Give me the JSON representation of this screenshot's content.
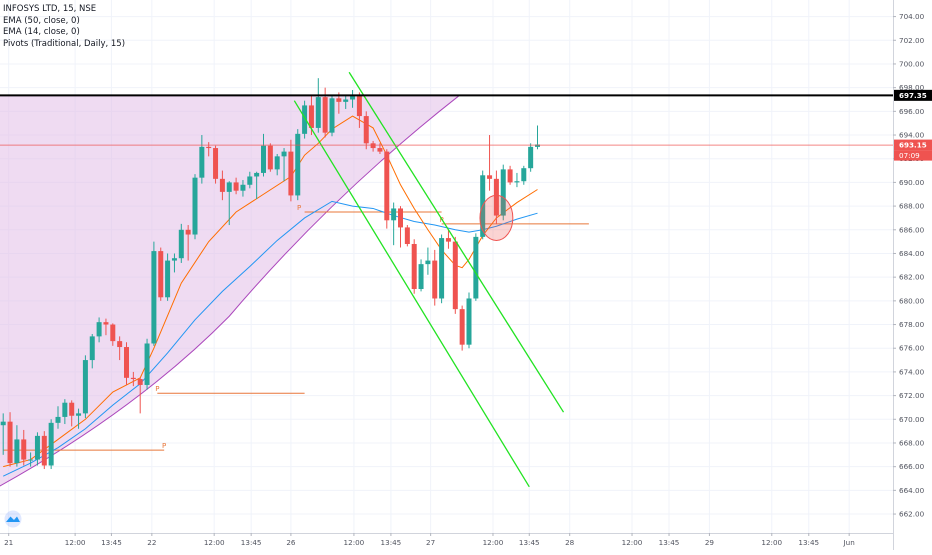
{
  "chart_data": {
    "type": "candlestick",
    "legend": [
      "INFOSYS LTD, 15, NSE",
      "EMA (50, close, 0)",
      "EMA (14, close, 0)",
      "Pivots (Traditional, Daily, 15)"
    ],
    "ylim": [
      660.4,
      705.4
    ],
    "y_ticks": [
      662.0,
      664.0,
      666.0,
      668.0,
      670.0,
      672.0,
      674.0,
      676.0,
      678.0,
      680.0,
      682.0,
      684.0,
      686.0,
      688.0,
      690.0,
      692.0,
      694.0,
      696.0,
      698.0,
      700.0,
      702.0,
      704.0
    ],
    "y_tick_labels": [
      "662.00",
      "664.00",
      "666.00",
      "668.00",
      "670.00",
      "672.00",
      "674.00",
      "676.00",
      "678.00",
      "680.00",
      "682.00",
      "684.00",
      "686.00",
      "688.00",
      "690.00",
      "692.00",
      "694.00",
      "696.00",
      "698.00",
      "700.00",
      "702.00",
      "704.00"
    ],
    "x_domain": [
      0,
      125
    ],
    "x_ticks": [
      {
        "x": 0.8,
        "label": "21"
      },
      {
        "x": 10.5,
        "label": "12:00"
      },
      {
        "x": 15.8,
        "label": "13:45"
      },
      {
        "x": 21.7,
        "label": "22"
      },
      {
        "x": 30.8,
        "label": "12:00"
      },
      {
        "x": 36.2,
        "label": "13:45"
      },
      {
        "x": 42.0,
        "label": "26"
      },
      {
        "x": 51.2,
        "label": "12:00"
      },
      {
        "x": 56.6,
        "label": "13:45"
      },
      {
        "x": 62.4,
        "label": "27"
      },
      {
        "x": 71.5,
        "label": "12:00"
      },
      {
        "x": 76.8,
        "label": "13:45"
      },
      {
        "x": 82.7,
        "label": "28"
      },
      {
        "x": 91.8,
        "label": "12:00"
      },
      {
        "x": 97.2,
        "label": "13:45"
      },
      {
        "x": 103.1,
        "label": "29"
      },
      {
        "x": 112.2,
        "label": "12:00"
      },
      {
        "x": 117.6,
        "label": "13:45"
      },
      {
        "x": 123.5,
        "label": "Jun"
      }
    ],
    "candles": [
      {
        "o": 669.5,
        "h": 670.5,
        "l": 667.0,
        "c": 669.8
      },
      {
        "o": 669.8,
        "h": 670.6,
        "l": 666.0,
        "c": 666.3
      },
      {
        "o": 666.3,
        "h": 669.5,
        "l": 666.0,
        "c": 668.3
      },
      {
        "o": 668.3,
        "h": 669.1,
        "l": 666.1,
        "c": 666.6
      },
      {
        "o": 666.6,
        "h": 667.2,
        "l": 666.0,
        "c": 666.6
      },
      {
        "o": 666.6,
        "h": 668.9,
        "l": 666.1,
        "c": 668.6
      },
      {
        "o": 668.6,
        "h": 669.0,
        "l": 665.8,
        "c": 666.1
      },
      {
        "o": 666.1,
        "h": 670.0,
        "l": 665.8,
        "c": 669.7
      },
      {
        "o": 669.7,
        "h": 671.1,
        "l": 669.2,
        "c": 670.2
      },
      {
        "o": 670.2,
        "h": 671.7,
        "l": 669.6,
        "c": 671.4
      },
      {
        "o": 671.4,
        "h": 671.6,
        "l": 669.4,
        "c": 670.3
      },
      {
        "o": 670.3,
        "h": 670.9,
        "l": 669.2,
        "c": 670.5
      },
      {
        "o": 670.5,
        "h": 675.4,
        "l": 670.1,
        "c": 675.0
      },
      {
        "o": 675.0,
        "h": 677.2,
        "l": 674.3,
        "c": 677.0
      },
      {
        "o": 677.0,
        "h": 678.6,
        "l": 676.5,
        "c": 678.2
      },
      {
        "o": 678.2,
        "h": 678.5,
        "l": 677.1,
        "c": 678.0
      },
      {
        "o": 678.0,
        "h": 678.1,
        "l": 676.2,
        "c": 676.6
      },
      {
        "o": 676.6,
        "h": 677.0,
        "l": 675.0,
        "c": 676.1
      },
      {
        "o": 676.1,
        "h": 676.5,
        "l": 672.9,
        "c": 673.5
      },
      {
        "o": 673.5,
        "h": 674.0,
        "l": 672.8,
        "c": 673.4
      },
      {
        "o": 673.4,
        "h": 673.5,
        "l": 670.5,
        "c": 672.9
      },
      {
        "o": 672.9,
        "h": 676.8,
        "l": 672.5,
        "c": 676.4
      },
      {
        "o": 676.4,
        "h": 685.0,
        "l": 676.2,
        "c": 684.2
      },
      {
        "o": 684.2,
        "h": 684.5,
        "l": 680.0,
        "c": 680.3
      },
      {
        "o": 680.3,
        "h": 684.0,
        "l": 680.0,
        "c": 683.4
      },
      {
        "o": 683.4,
        "h": 684.0,
        "l": 682.4,
        "c": 683.6
      },
      {
        "o": 683.6,
        "h": 686.5,
        "l": 683.2,
        "c": 686.0
      },
      {
        "o": 686.0,
        "h": 686.4,
        "l": 683.4,
        "c": 685.6
      },
      {
        "o": 685.6,
        "h": 690.7,
        "l": 685.2,
        "c": 690.4
      },
      {
        "o": 690.4,
        "h": 694.0,
        "l": 689.9,
        "c": 693.0
      },
      {
        "o": 693.0,
        "h": 693.4,
        "l": 692.2,
        "c": 692.9
      },
      {
        "o": 692.9,
        "h": 693.1,
        "l": 689.9,
        "c": 690.3
      },
      {
        "o": 690.3,
        "h": 691.0,
        "l": 688.5,
        "c": 689.2
      },
      {
        "o": 689.2,
        "h": 690.1,
        "l": 686.4,
        "c": 690.0
      },
      {
        "o": 690.0,
        "h": 690.4,
        "l": 689.0,
        "c": 689.3
      },
      {
        "o": 689.3,
        "h": 690.2,
        "l": 688.8,
        "c": 689.8
      },
      {
        "o": 689.8,
        "h": 690.9,
        "l": 689.5,
        "c": 690.5
      },
      {
        "o": 690.5,
        "h": 690.9,
        "l": 688.6,
        "c": 690.8
      },
      {
        "o": 690.8,
        "h": 694.1,
        "l": 690.5,
        "c": 693.1
      },
      {
        "o": 693.1,
        "h": 693.3,
        "l": 690.9,
        "c": 691.1
      },
      {
        "o": 691.1,
        "h": 692.4,
        "l": 690.6,
        "c": 692.2
      },
      {
        "o": 692.2,
        "h": 692.9,
        "l": 690.1,
        "c": 692.6
      },
      {
        "o": 692.6,
        "h": 693.6,
        "l": 688.4,
        "c": 688.9
      },
      {
        "o": 688.9,
        "h": 694.5,
        "l": 688.5,
        "c": 694.1
      },
      {
        "o": 694.1,
        "h": 696.9,
        "l": 693.7,
        "c": 696.5
      },
      {
        "o": 696.5,
        "h": 697.3,
        "l": 694.0,
        "c": 694.6
      },
      {
        "o": 694.6,
        "h": 698.8,
        "l": 694.2,
        "c": 697.2
      },
      {
        "o": 697.2,
        "h": 698.0,
        "l": 693.8,
        "c": 694.2
      },
      {
        "o": 694.2,
        "h": 697.3,
        "l": 693.9,
        "c": 697.1
      },
      {
        "o": 697.1,
        "h": 697.6,
        "l": 695.8,
        "c": 696.8
      },
      {
        "o": 696.8,
        "h": 697.4,
        "l": 696.2,
        "c": 697.0
      },
      {
        "o": 697.0,
        "h": 697.8,
        "l": 696.3,
        "c": 697.3
      },
      {
        "o": 697.3,
        "h": 697.6,
        "l": 694.6,
        "c": 695.6
      },
      {
        "o": 695.6,
        "h": 696.0,
        "l": 692.8,
        "c": 693.3
      },
      {
        "o": 693.3,
        "h": 693.5,
        "l": 692.6,
        "c": 692.9
      },
      {
        "o": 692.9,
        "h": 693.3,
        "l": 692.4,
        "c": 692.6
      },
      {
        "o": 692.6,
        "h": 692.8,
        "l": 686.1,
        "c": 686.8
      },
      {
        "o": 686.8,
        "h": 688.3,
        "l": 684.7,
        "c": 687.8
      },
      {
        "o": 687.8,
        "h": 688.0,
        "l": 684.5,
        "c": 686.2
      },
      {
        "o": 686.2,
        "h": 686.4,
        "l": 684.6,
        "c": 684.8
      },
      {
        "o": 684.8,
        "h": 685.2,
        "l": 680.6,
        "c": 681.0
      },
      {
        "o": 681.0,
        "h": 683.5,
        "l": 680.8,
        "c": 683.1
      },
      {
        "o": 683.1,
        "h": 684.5,
        "l": 682.2,
        "c": 683.4
      },
      {
        "o": 683.4,
        "h": 684.3,
        "l": 679.6,
        "c": 680.2
      },
      {
        "o": 680.2,
        "h": 685.6,
        "l": 679.8,
        "c": 685.3
      },
      {
        "o": 685.3,
        "h": 686.0,
        "l": 684.4,
        "c": 685.0
      },
      {
        "o": 685.0,
        "h": 685.4,
        "l": 678.9,
        "c": 679.3
      },
      {
        "o": 679.3,
        "h": 679.6,
        "l": 675.8,
        "c": 676.3
      },
      {
        "o": 676.3,
        "h": 680.7,
        "l": 676.0,
        "c": 680.2
      },
      {
        "o": 680.2,
        "h": 685.7,
        "l": 680.0,
        "c": 685.4
      },
      {
        "o": 685.4,
        "h": 691.0,
        "l": 685.2,
        "c": 690.6
      },
      {
        "o": 690.6,
        "h": 694.0,
        "l": 689.3,
        "c": 690.3
      },
      {
        "o": 690.3,
        "h": 691.0,
        "l": 686.5,
        "c": 687.2
      },
      {
        "o": 687.2,
        "h": 691.5,
        "l": 686.8,
        "c": 691.1
      },
      {
        "o": 691.1,
        "h": 691.4,
        "l": 689.8,
        "c": 690.0
      },
      {
        "o": 690.0,
        "h": 690.8,
        "l": 689.6,
        "c": 690.1
      },
      {
        "o": 690.1,
        "h": 691.4,
        "l": 689.8,
        "c": 691.2
      },
      {
        "o": 691.2,
        "h": 693.3,
        "l": 690.9,
        "c": 693.0
      },
      {
        "o": 693.0,
        "h": 694.8,
        "l": 692.8,
        "c": 693.2
      }
    ],
    "ema50": [
      [
        0,
        665.2
      ],
      [
        4,
        666.3
      ],
      [
        8,
        667.6
      ],
      [
        12,
        669.2
      ],
      [
        16,
        671.2
      ],
      [
        20,
        673.0
      ],
      [
        24,
        675.6
      ],
      [
        28,
        678.4
      ],
      [
        32,
        680.8
      ],
      [
        36,
        682.9
      ],
      [
        40,
        685.1
      ],
      [
        44,
        687.0
      ],
      [
        48,
        688.4
      ],
      [
        51,
        688.0
      ],
      [
        54,
        687.8
      ],
      [
        57,
        687.2
      ],
      [
        60,
        686.7
      ],
      [
        63,
        686.4
      ],
      [
        66,
        686.0
      ],
      [
        68,
        685.8
      ],
      [
        70,
        686.0
      ],
      [
        72,
        686.3
      ],
      [
        75,
        686.9
      ],
      [
        78,
        687.4
      ]
    ],
    "ema14": [
      [
        0,
        666.0
      ],
      [
        4,
        666.6
      ],
      [
        8,
        668.3
      ],
      [
        12,
        670.0
      ],
      [
        16,
        672.3
      ],
      [
        20,
        673.5
      ],
      [
        22,
        676.0
      ],
      [
        26,
        681.5
      ],
      [
        30,
        685.0
      ],
      [
        34,
        687.5
      ],
      [
        38,
        689.0
      ],
      [
        42,
        690.5
      ],
      [
        44,
        692.3
      ],
      [
        46,
        693.3
      ],
      [
        48,
        694.5
      ],
      [
        51,
        695.6
      ],
      [
        54,
        694.6
      ],
      [
        56,
        692.3
      ],
      [
        58,
        689.8
      ],
      [
        60,
        687.8
      ],
      [
        62,
        686.0
      ],
      [
        64,
        684.3
      ],
      [
        66,
        683.0
      ],
      [
        67,
        682.8
      ],
      [
        68,
        683.5
      ],
      [
        70,
        685.5
      ],
      [
        72,
        687.0
      ],
      [
        75,
        688.3
      ],
      [
        78,
        689.4
      ]
    ],
    "pivot_segments": [
      {
        "x1": 0,
        "x2": 23.5,
        "y": 667.4,
        "label": "P",
        "label_x": 23.5
      },
      {
        "x1": 22.5,
        "x2": 44,
        "y": 672.2,
        "label": "P",
        "label_x": 22.5
      },
      {
        "x1": 44,
        "x2": 64,
        "y": 687.5,
        "label": "P",
        "label_x": 43.2
      },
      {
        "x1": 64,
        "x2": 85.5,
        "y": 686.5,
        "label": "P",
        "label_x": 64.0
      }
    ],
    "wedge": {
      "apex": [
        -1,
        664.2
      ],
      "tangent_point": [
        33,
        678.7
      ],
      "top_y": 697.3,
      "top_right_x": 66.5
    },
    "channel_upper": [
      [
        50.5,
        699.3
      ],
      [
        81.8,
        670.6
      ]
    ],
    "channel_lower": [
      [
        42.5,
        696.9
      ],
      [
        76.8,
        664.3
      ]
    ],
    "circle": {
      "cx": 72.0,
      "cy": 687.0,
      "rx": 2.4,
      "ry": 1.9
    },
    "horizontal_lines": [
      {
        "y": 697.35,
        "color": "#000000",
        "label": "697.35"
      },
      {
        "y": 693.15,
        "color": "#ef5350",
        "label": "693.15"
      }
    ],
    "countdown": "07:09",
    "colors": {
      "up": "#26a69a",
      "down": "#ef5350",
      "ema50": "#2196f3",
      "ema14": "#ff6d00",
      "pivot": "#e8773a",
      "channel": "#22e322",
      "wedge_fill": "#e1bee7"
    }
  }
}
